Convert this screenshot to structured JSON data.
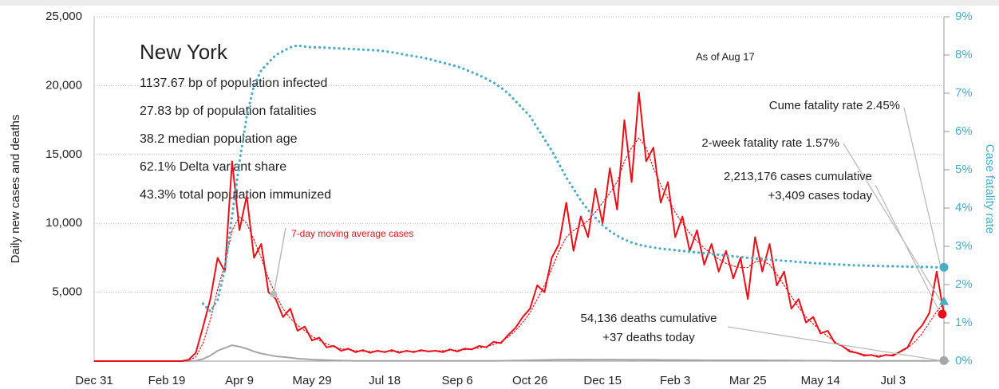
{
  "chart_data": {
    "type": "line",
    "title": "New York",
    "info_lines": [
      "1137.67 bp of population infected",
      "27.83 bp of population fatalities",
      "38.2 median population age",
      "62.1% Delta variant share",
      "43.3% total population immunized"
    ],
    "as_of": "As of Aug 17",
    "ylabel": "Daily new cases and deaths",
    "y2label": "Case fatality rate",
    "ylim": [
      0,
      25000
    ],
    "yticks": [
      {
        "value": 5000,
        "label": "5,000"
      },
      {
        "value": 10000,
        "label": "10,000"
      },
      {
        "value": 15000,
        "label": "15,000"
      },
      {
        "value": 20000,
        "label": "20,000"
      },
      {
        "value": 25000,
        "label": "25,000"
      }
    ],
    "y2lim": [
      0,
      9
    ],
    "y2ticks": [
      {
        "value": 0,
        "label": "0%"
      },
      {
        "value": 1,
        "label": "1%"
      },
      {
        "value": 2,
        "label": "2%"
      },
      {
        "value": 3,
        "label": "3%"
      },
      {
        "value": 4,
        "label": "4%"
      },
      {
        "value": 5,
        "label": "5%"
      },
      {
        "value": 6,
        "label": "6%"
      },
      {
        "value": 7,
        "label": "7%"
      },
      {
        "value": 8,
        "label": "8%"
      },
      {
        "value": 9,
        "label": "9%"
      }
    ],
    "grid": true,
    "categories": [
      "Dec 31",
      null,
      null,
      null,
      null,
      null,
      null,
      null,
      null,
      null,
      "Feb 19",
      null,
      null,
      null,
      null,
      null,
      null,
      null,
      null,
      null,
      "Apr 9",
      null,
      null,
      null,
      null,
      null,
      null,
      null,
      null,
      null,
      "May 29",
      null,
      null,
      null,
      null,
      null,
      null,
      null,
      null,
      null,
      "Jul 18",
      null,
      null,
      null,
      null,
      null,
      null,
      null,
      null,
      null,
      "Sep 6",
      null,
      null,
      null,
      null,
      null,
      null,
      null,
      null,
      null,
      "Oct 26",
      null,
      null,
      null,
      null,
      null,
      null,
      null,
      null,
      null,
      "Dec 15",
      null,
      null,
      null,
      null,
      null,
      null,
      null,
      null,
      null,
      "Feb 3",
      null,
      null,
      null,
      null,
      null,
      null,
      null,
      null,
      null,
      "Mar 25",
      null,
      null,
      null,
      null,
      null,
      null,
      null,
      null,
      null,
      "May 14",
      null,
      null,
      null,
      null,
      null,
      null,
      null,
      null,
      null,
      "Jul 3",
      null,
      null,
      null,
      null,
      null,
      null,
      null
    ],
    "series": [
      {
        "name": "Daily new cases",
        "color": "#e8101a",
        "style": "solid",
        "width": 2,
        "axis": "y",
        "values": [
          0,
          0,
          0,
          0,
          0,
          0,
          0,
          0,
          0,
          0,
          0,
          0,
          0,
          100,
          600,
          2500,
          4500,
          7500,
          6500,
          14500,
          9500,
          12000,
          7500,
          8500,
          5000,
          4500,
          3200,
          3800,
          2200,
          2500,
          1500,
          1700,
          1000,
          1100,
          750,
          900,
          650,
          800,
          600,
          750,
          650,
          800,
          600,
          750,
          650,
          800,
          700,
          750,
          650,
          850,
          700,
          900,
          850,
          1100,
          1000,
          1400,
          1300,
          1900,
          2400,
          3200,
          3800,
          5500,
          5000,
          7500,
          8500,
          11500,
          8000,
          10500,
          9000,
          12500,
          10000,
          14000,
          11000,
          17500,
          13000,
          19500,
          14500,
          15500,
          11500,
          13000,
          9000,
          10500,
          8000,
          9500,
          7000,
          8500,
          6500,
          8000,
          6000,
          7500,
          4500,
          9000,
          6500,
          8500,
          5500,
          6500,
          3800,
          4500,
          2800,
          3200,
          2000,
          2200,
          1300,
          1100,
          700,
          600,
          400,
          450,
          300,
          450,
          400,
          700,
          1000,
          2000,
          2600,
          3500,
          6500,
          3409
        ]
      },
      {
        "name": "7-day moving average cases",
        "color": "#e8101a",
        "style": "dotted",
        "width": 1.2,
        "axis": "y",
        "values": [
          0,
          0,
          0,
          0,
          0,
          0,
          0,
          0,
          0,
          0,
          0,
          0,
          0,
          50,
          300,
          1300,
          3000,
          5200,
          7000,
          9500,
          10500,
          10000,
          8800,
          7500,
          6000,
          4800,
          3800,
          3100,
          2600,
          2200,
          1800,
          1500,
          1250,
          1050,
          900,
          820,
          760,
          720,
          700,
          700,
          700,
          700,
          700,
          700,
          710,
          720,
          730,
          740,
          760,
          780,
          800,
          830,
          880,
          950,
          1050,
          1200,
          1400,
          1750,
          2200,
          2800,
          3500,
          4500,
          5500,
          6700,
          8000,
          9000,
          9500,
          9800,
          10200,
          10800,
          11500,
          12200,
          13000,
          14500,
          15500,
          16200,
          15500,
          14000,
          12800,
          11800,
          10800,
          10000,
          9300,
          8700,
          8200,
          7800,
          7400,
          7100,
          6900,
          6800,
          6800,
          7200,
          7300,
          7000,
          6300,
          5500,
          4700,
          3900,
          3200,
          2700,
          2200,
          1800,
          1400,
          1100,
          800,
          600,
          480,
          420,
          400,
          420,
          480,
          650,
          950,
          1400,
          2000,
          2800,
          3600,
          4200
        ]
      },
      {
        "name": "Daily new deaths",
        "color": "#a6a6a6",
        "style": "solid",
        "width": 2,
        "axis": "y",
        "values": [
          0,
          0,
          0,
          0,
          0,
          0,
          0,
          0,
          0,
          0,
          0,
          0,
          0,
          0,
          30,
          150,
          400,
          750,
          950,
          1150,
          1050,
          900,
          700,
          550,
          450,
          350,
          300,
          250,
          180,
          150,
          110,
          90,
          70,
          50,
          40,
          30,
          20,
          20,
          20,
          20,
          20,
          20,
          20,
          20,
          20,
          20,
          20,
          20,
          20,
          20,
          20,
          20,
          20,
          20,
          20,
          20,
          25,
          30,
          40,
          50,
          60,
          70,
          80,
          90,
          100,
          100,
          110,
          100,
          110,
          100,
          100,
          110,
          100,
          100,
          90,
          100,
          90,
          90,
          80,
          80,
          80,
          70,
          70,
          70,
          60,
          60,
          60,
          60,
          60,
          60,
          60,
          60,
          60,
          50,
          50,
          50,
          40,
          40,
          30,
          30,
          30,
          30,
          20,
          20,
          20,
          20,
          20,
          20,
          20,
          20,
          20,
          20,
          20,
          20,
          20,
          20,
          30,
          37
        ]
      },
      {
        "name": "Case fatality rate",
        "color": "#4bacc6",
        "style": "dotted",
        "width": 3.2,
        "axis": "y2",
        "values": [
          null,
          null,
          null,
          null,
          null,
          null,
          null,
          null,
          null,
          null,
          null,
          null,
          null,
          null,
          null,
          1.5,
          1.3,
          1.6,
          2.4,
          3.8,
          5.2,
          6.4,
          7.2,
          7.6,
          7.8,
          8.0,
          8.1,
          8.2,
          8.25,
          8.22,
          8.2,
          8.2,
          8.19,
          8.18,
          8.17,
          8.16,
          8.15,
          8.14,
          8.13,
          8.12,
          8.1,
          8.07,
          8.04,
          8.0,
          7.97,
          7.94,
          7.9,
          7.85,
          7.8,
          7.75,
          7.7,
          7.63,
          7.55,
          7.47,
          7.38,
          7.28,
          7.15,
          7.0,
          6.8,
          6.6,
          6.4,
          6.1,
          5.8,
          5.5,
          5.15,
          4.8,
          4.5,
          4.2,
          3.95,
          3.75,
          3.55,
          3.4,
          3.28,
          3.18,
          3.1,
          3.04,
          3.0,
          2.97,
          2.94,
          2.92,
          2.9,
          2.88,
          2.86,
          2.84,
          2.82,
          2.8,
          2.78,
          2.76,
          2.74,
          2.72,
          2.7,
          2.68,
          2.67,
          2.65,
          2.64,
          2.62,
          2.61,
          2.59,
          2.58,
          2.56,
          2.55,
          2.54,
          2.53,
          2.52,
          2.51,
          2.5,
          2.5,
          2.49,
          2.49,
          2.48,
          2.48,
          2.47,
          2.47,
          2.46,
          2.46,
          2.46,
          2.45,
          2.45
        ]
      }
    ],
    "end_notes": [
      {
        "lines": [
          "Cume fatality rate 2.45%"
        ],
        "value": 2.45,
        "axis": "y2",
        "shape": "circle",
        "color": "#4bacc6"
      },
      {
        "lines": [
          "2-week fatality rate 1.57%"
        ],
        "value": 1.57,
        "axis": "y2",
        "shape": "triangle",
        "color": "#4bacc6"
      },
      {
        "lines": [
          "2,213,176 cases cumulative",
          "+3,409 cases today"
        ],
        "value": 3409,
        "axis": "y",
        "shape": "circle",
        "color": "#e8101a"
      },
      {
        "lines": [
          "54,136 deaths cumulative",
          "+37 deaths today"
        ],
        "value": 37,
        "axis": "y",
        "shape": "circle",
        "color": "#a6a6a6"
      }
    ]
  }
}
